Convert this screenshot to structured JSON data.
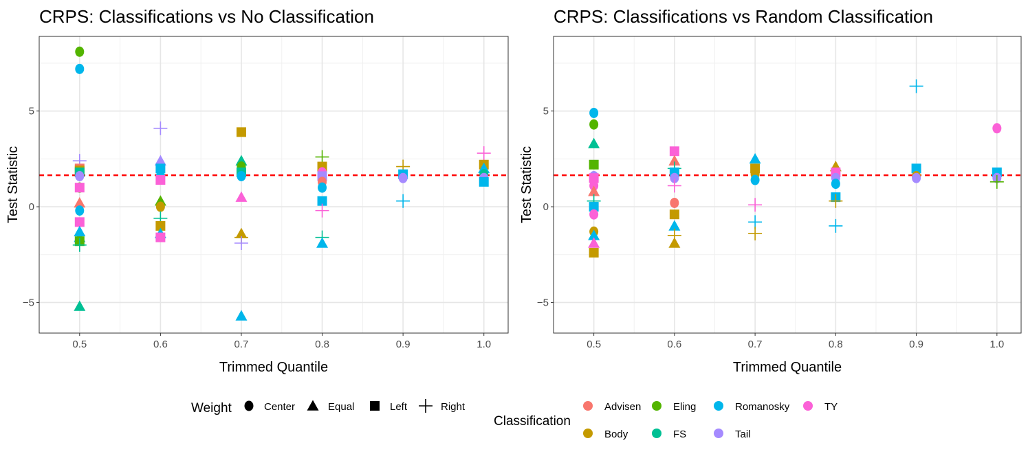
{
  "colors": {
    "Advisen": "#F8766D",
    "Body": "#C49A00",
    "Eling": "#53B400",
    "FS": "#00C094",
    "Romanosky": "#00B6EB",
    "Tail": "#A58AFF",
    "TY": "#FB61D7",
    "reference_line": "#FF0000"
  },
  "shape_icons": {
    "Center": "circle",
    "Equal": "triangle",
    "Left": "square",
    "Right": "plus"
  },
  "legend": {
    "weight_title": "Weight",
    "weights": [
      "Center",
      "Equal",
      "Left",
      "Right"
    ],
    "class_title": "Classification",
    "classes": [
      "Advisen",
      "Eling",
      "Romanosky",
      "TY",
      "Body",
      "FS",
      "Tail"
    ]
  },
  "chart_data": [
    {
      "type": "scatter",
      "title": "CRPS: Classifications vs No Classification",
      "xlabel": "Trimmed Quantile",
      "ylabel": "Test Statistic",
      "x_ticks": [
        "0.5",
        "0.6",
        "0.7",
        "0.8",
        "0.9",
        "1.0"
      ],
      "y_ticks": [
        "-5",
        "0",
        "5"
      ],
      "xlim": [
        0.45,
        1.03
      ],
      "ylim": [
        -6.6,
        8.9
      ],
      "reference_line": 1.645,
      "points": [
        {
          "x": 0.5,
          "y": 8.1,
          "cls": "Eling",
          "w": "Center"
        },
        {
          "x": 0.5,
          "y": 7.2,
          "cls": "Romanosky",
          "w": "Center"
        },
        {
          "x": 0.5,
          "y": 2.4,
          "cls": "Tail",
          "w": "Right"
        },
        {
          "x": 0.5,
          "y": 2.0,
          "cls": "Advisen",
          "w": "Left"
        },
        {
          "x": 0.5,
          "y": 1.9,
          "cls": "Body",
          "w": "Left"
        },
        {
          "x": 0.5,
          "y": 1.8,
          "cls": "FS",
          "w": "Left"
        },
        {
          "x": 0.5,
          "y": 1.6,
          "cls": "Tail",
          "w": "Center"
        },
        {
          "x": 0.5,
          "y": 1.0,
          "cls": "Eling",
          "w": "Center"
        },
        {
          "x": 0.5,
          "y": 1.0,
          "cls": "TY",
          "w": "Left"
        },
        {
          "x": 0.5,
          "y": 0.2,
          "cls": "Advisen",
          "w": "Equal"
        },
        {
          "x": 0.5,
          "y": -0.2,
          "cls": "Romanosky",
          "w": "Center"
        },
        {
          "x": 0.5,
          "y": -0.8,
          "cls": "TY",
          "w": "Left"
        },
        {
          "x": 0.5,
          "y": -1.3,
          "cls": "Romanosky",
          "w": "Equal"
        },
        {
          "x": 0.5,
          "y": -1.6,
          "cls": "Romanosky",
          "w": "Equal"
        },
        {
          "x": 0.5,
          "y": -1.8,
          "cls": "Eling",
          "w": "Left"
        },
        {
          "x": 0.5,
          "y": -2.0,
          "cls": "FS",
          "w": "Right"
        },
        {
          "x": 0.5,
          "y": -5.2,
          "cls": "FS",
          "w": "Equal"
        },
        {
          "x": 0.6,
          "y": 4.1,
          "cls": "Tail",
          "w": "Right"
        },
        {
          "x": 0.6,
          "y": 2.4,
          "cls": "Tail",
          "w": "Equal"
        },
        {
          "x": 0.6,
          "y": 2.0,
          "cls": "Romanosky",
          "w": "Left"
        },
        {
          "x": 0.6,
          "y": 1.6,
          "cls": "Romanosky",
          "w": "Center"
        },
        {
          "x": 0.6,
          "y": 1.4,
          "cls": "TY",
          "w": "Left"
        },
        {
          "x": 0.6,
          "y": 0.3,
          "cls": "Eling",
          "w": "Equal"
        },
        {
          "x": 0.6,
          "y": 0.0,
          "cls": "Body",
          "w": "Center"
        },
        {
          "x": 0.6,
          "y": -0.6,
          "cls": "FS",
          "w": "Right"
        },
        {
          "x": 0.6,
          "y": -1.0,
          "cls": "Body",
          "w": "Left"
        },
        {
          "x": 0.6,
          "y": -1.4,
          "cls": "Romanosky",
          "w": "Equal"
        },
        {
          "x": 0.6,
          "y": -1.6,
          "cls": "TY",
          "w": "Left"
        },
        {
          "x": 0.7,
          "y": 3.9,
          "cls": "Body",
          "w": "Left"
        },
        {
          "x": 0.7,
          "y": 2.4,
          "cls": "FS",
          "w": "Equal"
        },
        {
          "x": 0.7,
          "y": 2.1,
          "cls": "Eling",
          "w": "Center"
        },
        {
          "x": 0.7,
          "y": 1.8,
          "cls": "FS",
          "w": "Left"
        },
        {
          "x": 0.7,
          "y": 1.6,
          "cls": "Romanosky",
          "w": "Center"
        },
        {
          "x": 0.7,
          "y": 0.5,
          "cls": "TY",
          "w": "Equal"
        },
        {
          "x": 0.7,
          "y": -1.4,
          "cls": "Body",
          "w": "Equal"
        },
        {
          "x": 0.7,
          "y": -1.6,
          "cls": "Body",
          "w": "Right"
        },
        {
          "x": 0.7,
          "y": -1.9,
          "cls": "Tail",
          "w": "Right"
        },
        {
          "x": 0.7,
          "y": -5.7,
          "cls": "Romanosky",
          "w": "Equal"
        },
        {
          "x": 0.8,
          "y": 2.6,
          "cls": "Eling",
          "w": "Right"
        },
        {
          "x": 0.8,
          "y": 2.1,
          "cls": "Body",
          "w": "Left"
        },
        {
          "x": 0.8,
          "y": 1.8,
          "cls": "TY",
          "w": "Center"
        },
        {
          "x": 0.8,
          "y": 1.6,
          "cls": "Tail",
          "w": "Left"
        },
        {
          "x": 0.8,
          "y": 1.3,
          "cls": "Advisen",
          "w": "Center"
        },
        {
          "x": 0.8,
          "y": 1.0,
          "cls": "Romanosky",
          "w": "Center"
        },
        {
          "x": 0.8,
          "y": 0.3,
          "cls": "Romanosky",
          "w": "Left"
        },
        {
          "x": 0.8,
          "y": -0.2,
          "cls": "TY",
          "w": "Right"
        },
        {
          "x": 0.8,
          "y": -1.6,
          "cls": "FS",
          "w": "Right"
        },
        {
          "x": 0.8,
          "y": -1.9,
          "cls": "Romanosky",
          "w": "Equal"
        },
        {
          "x": 0.9,
          "y": 2.1,
          "cls": "Body",
          "w": "Right"
        },
        {
          "x": 0.9,
          "y": 1.7,
          "cls": "Romanosky",
          "w": "Left"
        },
        {
          "x": 0.9,
          "y": 1.5,
          "cls": "Tail",
          "w": "Center"
        },
        {
          "x": 0.9,
          "y": 0.3,
          "cls": "Romanosky",
          "w": "Right"
        },
        {
          "x": 1.0,
          "y": 2.8,
          "cls": "TY",
          "w": "Right"
        },
        {
          "x": 1.0,
          "y": 2.2,
          "cls": "Body",
          "w": "Left"
        },
        {
          "x": 1.0,
          "y": 2.0,
          "cls": "Romanosky",
          "w": "Equal"
        },
        {
          "x": 1.0,
          "y": 1.7,
          "cls": "FS",
          "w": "Center"
        },
        {
          "x": 1.0,
          "y": 1.5,
          "cls": "Tail",
          "w": "Center"
        },
        {
          "x": 1.0,
          "y": 1.3,
          "cls": "Romanosky",
          "w": "Left"
        }
      ]
    },
    {
      "type": "scatter",
      "title": "CRPS: Classifications vs Random Classification",
      "xlabel": "Trimmed Quantile",
      "ylabel": "Test Statistic",
      "x_ticks": [
        "0.5",
        "0.6",
        "0.7",
        "0.8",
        "0.9",
        "1.0"
      ],
      "y_ticks": [
        "-5",
        "0",
        "5"
      ],
      "xlim": [
        0.45,
        1.03
      ],
      "ylim": [
        -6.6,
        8.9
      ],
      "reference_line": 1.645,
      "points": [
        {
          "x": 0.5,
          "y": 4.9,
          "cls": "Romanosky",
          "w": "Center"
        },
        {
          "x": 0.5,
          "y": 4.3,
          "cls": "Eling",
          "w": "Center"
        },
        {
          "x": 0.5,
          "y": 3.3,
          "cls": "FS",
          "w": "Equal"
        },
        {
          "x": 0.5,
          "y": 2.2,
          "cls": "Eling",
          "w": "Left"
        },
        {
          "x": 0.5,
          "y": 1.6,
          "cls": "Tail",
          "w": "Center"
        },
        {
          "x": 0.5,
          "y": 1.5,
          "cls": "TY",
          "w": "Left"
        },
        {
          "x": 0.5,
          "y": 1.1,
          "cls": "TY",
          "w": "Center"
        },
        {
          "x": 0.5,
          "y": 0.8,
          "cls": "Advisen",
          "w": "Equal"
        },
        {
          "x": 0.5,
          "y": 0.3,
          "cls": "FS",
          "w": "Right"
        },
        {
          "x": 0.5,
          "y": 0.0,
          "cls": "Romanosky",
          "w": "Left"
        },
        {
          "x": 0.5,
          "y": -0.4,
          "cls": "TY",
          "w": "Center"
        },
        {
          "x": 0.5,
          "y": -1.3,
          "cls": "Body",
          "w": "Center"
        },
        {
          "x": 0.5,
          "y": -1.5,
          "cls": "Romanosky",
          "w": "Equal"
        },
        {
          "x": 0.5,
          "y": -1.9,
          "cls": "TY",
          "w": "Equal"
        },
        {
          "x": 0.5,
          "y": -2.4,
          "cls": "Body",
          "w": "Left"
        },
        {
          "x": 0.6,
          "y": 2.9,
          "cls": "TY",
          "w": "Left"
        },
        {
          "x": 0.6,
          "y": 2.4,
          "cls": "Advisen",
          "w": "Equal"
        },
        {
          "x": 0.6,
          "y": 2.0,
          "cls": "FS",
          "w": "Right"
        },
        {
          "x": 0.6,
          "y": 1.8,
          "cls": "Romanosky",
          "w": "Left"
        },
        {
          "x": 0.6,
          "y": 1.5,
          "cls": "Tail",
          "w": "Center"
        },
        {
          "x": 0.6,
          "y": 1.1,
          "cls": "TY",
          "w": "Right"
        },
        {
          "x": 0.6,
          "y": 0.2,
          "cls": "Advisen",
          "w": "Center"
        },
        {
          "x": 0.6,
          "y": -0.4,
          "cls": "Body",
          "w": "Left"
        },
        {
          "x": 0.6,
          "y": -1.0,
          "cls": "Romanosky",
          "w": "Equal"
        },
        {
          "x": 0.6,
          "y": -1.5,
          "cls": "Body",
          "w": "Right"
        },
        {
          "x": 0.6,
          "y": -1.9,
          "cls": "Body",
          "w": "Equal"
        },
        {
          "x": 0.7,
          "y": 2.5,
          "cls": "Romanosky",
          "w": "Equal"
        },
        {
          "x": 0.7,
          "y": 2.0,
          "cls": "Body",
          "w": "Left"
        },
        {
          "x": 0.7,
          "y": 1.7,
          "cls": "Body",
          "w": "Center"
        },
        {
          "x": 0.7,
          "y": 1.4,
          "cls": "Romanosky",
          "w": "Center"
        },
        {
          "x": 0.7,
          "y": 0.1,
          "cls": "TY",
          "w": "Right"
        },
        {
          "x": 0.7,
          "y": -0.8,
          "cls": "Romanosky",
          "w": "Right"
        },
        {
          "x": 0.7,
          "y": -1.4,
          "cls": "Body",
          "w": "Right"
        },
        {
          "x": 0.8,
          "y": 2.1,
          "cls": "Body",
          "w": "Equal"
        },
        {
          "x": 0.8,
          "y": 1.8,
          "cls": "TY",
          "w": "Left"
        },
        {
          "x": 0.8,
          "y": 1.5,
          "cls": "Tail",
          "w": "Center"
        },
        {
          "x": 0.8,
          "y": 1.2,
          "cls": "Romanosky",
          "w": "Center"
        },
        {
          "x": 0.8,
          "y": 0.5,
          "cls": "Romanosky",
          "w": "Left"
        },
        {
          "x": 0.8,
          "y": 0.3,
          "cls": "Body",
          "w": "Right"
        },
        {
          "x": 0.8,
          "y": -1.0,
          "cls": "Romanosky",
          "w": "Right"
        },
        {
          "x": 0.9,
          "y": 6.3,
          "cls": "Romanosky",
          "w": "Right"
        },
        {
          "x": 0.9,
          "y": 2.0,
          "cls": "Romanosky",
          "w": "Left"
        },
        {
          "x": 0.9,
          "y": 1.6,
          "cls": "Body",
          "w": "Center"
        },
        {
          "x": 0.9,
          "y": 1.5,
          "cls": "Tail",
          "w": "Center"
        },
        {
          "x": 1.0,
          "y": 4.1,
          "cls": "TY",
          "w": "Center"
        },
        {
          "x": 1.0,
          "y": 1.8,
          "cls": "Romanosky",
          "w": "Left"
        },
        {
          "x": 1.0,
          "y": 1.5,
          "cls": "Tail",
          "w": "Center"
        },
        {
          "x": 1.0,
          "y": 1.3,
          "cls": "Eling",
          "w": "Right"
        }
      ]
    }
  ]
}
